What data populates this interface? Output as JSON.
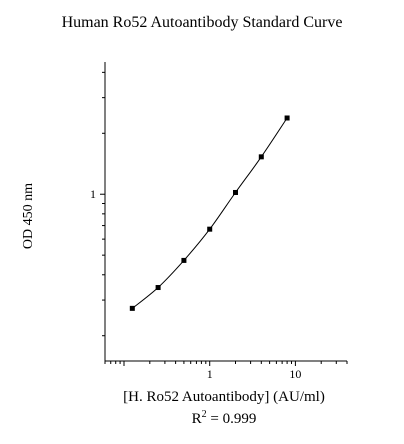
{
  "chart_data": {
    "type": "line",
    "title": "Human Ro52 Autoantibody Standard Curve",
    "xlabel": "[H. Ro52 Autoantibody] (AU/ml)",
    "ylabel": "OD 450 nm",
    "annotation": {
      "prefix": "R",
      "superscript": "2",
      "suffix": " = 0.999"
    },
    "x_scale": "log",
    "y_scale": "log",
    "xlim": [
      0.06,
      40
    ],
    "ylim": [
      0.15,
      4.5
    ],
    "x_ticks": [
      {
        "value": 1,
        "label": "1"
      },
      {
        "value": 10,
        "label": "10"
      }
    ],
    "y_ticks": [
      {
        "value": 1,
        "label": "1"
      }
    ],
    "grid": false,
    "series": [
      {
        "marker": "square",
        "x": [
          0.125,
          0.25,
          0.5,
          1,
          2,
          4,
          8
        ],
        "y": [
          0.273,
          0.346,
          0.471,
          0.672,
          1.02,
          1.53,
          2.38
        ]
      }
    ]
  }
}
